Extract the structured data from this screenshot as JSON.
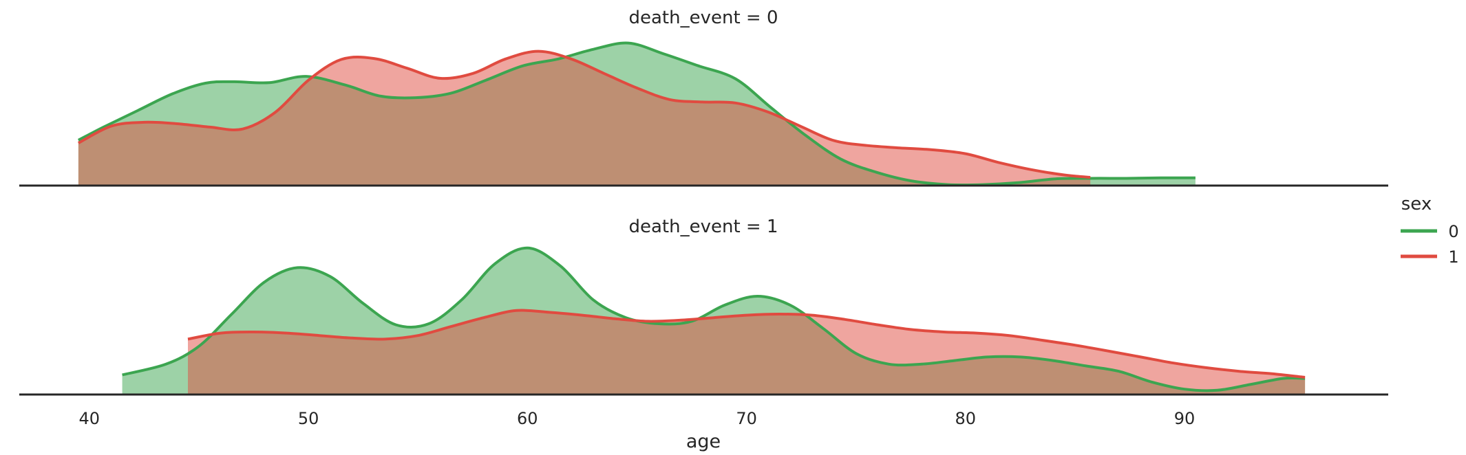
{
  "chart_data": {
    "type": "area",
    "xlabel": "age",
    "xlim": [
      36.8,
      99.3
    ],
    "xticks": [
      40,
      50,
      60,
      70,
      80,
      90
    ],
    "legend": {
      "title": "sex",
      "placement": "right",
      "entries": [
        "0",
        "1"
      ]
    },
    "colors": {
      "0": "#3ca550",
      "1": "#e04b40"
    },
    "fill_colors": {
      "0": "#9bd5a7",
      "1": "#f4a29b",
      "overlap": "#bf8a6e"
    },
    "panels": [
      {
        "title": "death_event = 0",
        "series": [
          {
            "name": "0",
            "x": [
              39.5,
              40.6,
              42.2,
              43.8,
              45.3,
              46.6,
              48.2,
              49.9,
              51.7,
              53.3,
              54.9,
              56.5,
              58.1,
              59.8,
              61.4,
              63.0,
              64.6,
              66.2,
              67.8,
              69.5,
              71.1,
              72.7,
              74.3,
              75.9,
              77.5,
              79.2,
              80.8,
              82.4,
              84.1,
              85.7,
              87.3,
              88.9,
              90.5
            ],
            "y": [
              0.0094,
              0.012,
              0.0155,
              0.019,
              0.0212,
              0.0215,
              0.0213,
              0.0226,
              0.0208,
              0.0185,
              0.0182,
              0.0191,
              0.0218,
              0.0248,
              0.0262,
              0.0282,
              0.0295,
              0.0273,
              0.0248,
              0.0221,
              0.0162,
              0.0104,
              0.0055,
              0.0028,
              0.001,
              0.0002,
              0.0002,
              0.0006,
              0.0014,
              0.0015,
              0.0015,
              0.0016,
              0.0016
            ]
          },
          {
            "name": "1",
            "x": [
              39.5,
              41.0,
              42.5,
              44.0,
              45.5,
              47.0,
              48.5,
              50.0,
              51.5,
              53.0,
              54.5,
              56.0,
              57.5,
              59.0,
              60.5,
              62.0,
              63.5,
              65.0,
              66.5,
              68.0,
              69.5,
              71.0,
              72.5,
              74.0,
              75.5,
              77.0,
              78.5,
              80.0,
              81.5,
              83.0,
              84.5,
              85.7
            ],
            "y": [
              0.0088,
              0.0123,
              0.0131,
              0.0128,
              0.0121,
              0.0117,
              0.0152,
              0.0218,
              0.0261,
              0.0263,
              0.0243,
              0.0222,
              0.0232,
              0.0262,
              0.0278,
              0.0262,
              0.0232,
              0.0202,
              0.0178,
              0.0173,
              0.0171,
              0.0152,
              0.0122,
              0.0093,
              0.0083,
              0.0078,
              0.0074,
              0.0066,
              0.0048,
              0.0033,
              0.0022,
              0.0017
            ]
          }
        ]
      },
      {
        "title": "death_event = 1",
        "series": [
          {
            "name": "0",
            "x": [
              41.5,
              43.5,
              45.0,
              46.5,
              48.0,
              49.5,
              51.0,
              52.5,
              54.0,
              55.5,
              57.0,
              58.5,
              60.0,
              61.5,
              63.0,
              64.5,
              66.0,
              67.5,
              69.0,
              70.5,
              72.0,
              73.5,
              75.0,
              76.5,
              78.0,
              79.5,
              81.0,
              82.5,
              84.0,
              85.5,
              87.0,
              88.5,
              90.0,
              91.5,
              93.0,
              94.5,
              95.5
            ],
            "y": [
              0.0055,
              0.0085,
              0.0135,
              0.0225,
              0.0315,
              0.0355,
              0.033,
              0.0255,
              0.0195,
              0.0198,
              0.0265,
              0.0365,
              0.041,
              0.036,
              0.0265,
              0.0215,
              0.0198,
              0.0205,
              0.025,
              0.0275,
              0.025,
              0.0185,
              0.0115,
              0.0085,
              0.0085,
              0.0095,
              0.0105,
              0.0105,
              0.0095,
              0.008,
              0.0065,
              0.0035,
              0.0015,
              0.0012,
              0.0028,
              0.0045,
              0.0045
            ]
          },
          {
            "name": "1",
            "x": [
              44.5,
              46.0,
              47.5,
              49.0,
              50.5,
              52.0,
              53.5,
              55.0,
              56.5,
              58.0,
              59.5,
              61.0,
              62.5,
              64.0,
              65.5,
              67.0,
              68.5,
              70.0,
              71.5,
              73.0,
              74.5,
              76.0,
              77.5,
              79.0,
              80.5,
              82.0,
              83.5,
              85.0,
              86.5,
              88.0,
              89.5,
              91.0,
              92.5,
              94.0,
              95.5
            ],
            "y": [
              0.0155,
              0.0172,
              0.0175,
              0.0172,
              0.0165,
              0.0158,
              0.0155,
              0.0165,
              0.019,
              0.0215,
              0.0235,
              0.023,
              0.0222,
              0.0212,
              0.0205,
              0.0208,
              0.0215,
              0.0222,
              0.0225,
              0.0222,
              0.021,
              0.0195,
              0.0182,
              0.0175,
              0.0172,
              0.0165,
              0.0152,
              0.0138,
              0.0122,
              0.0105,
              0.0088,
              0.0075,
              0.0065,
              0.0058,
              0.0048
            ]
          }
        ]
      }
    ]
  }
}
